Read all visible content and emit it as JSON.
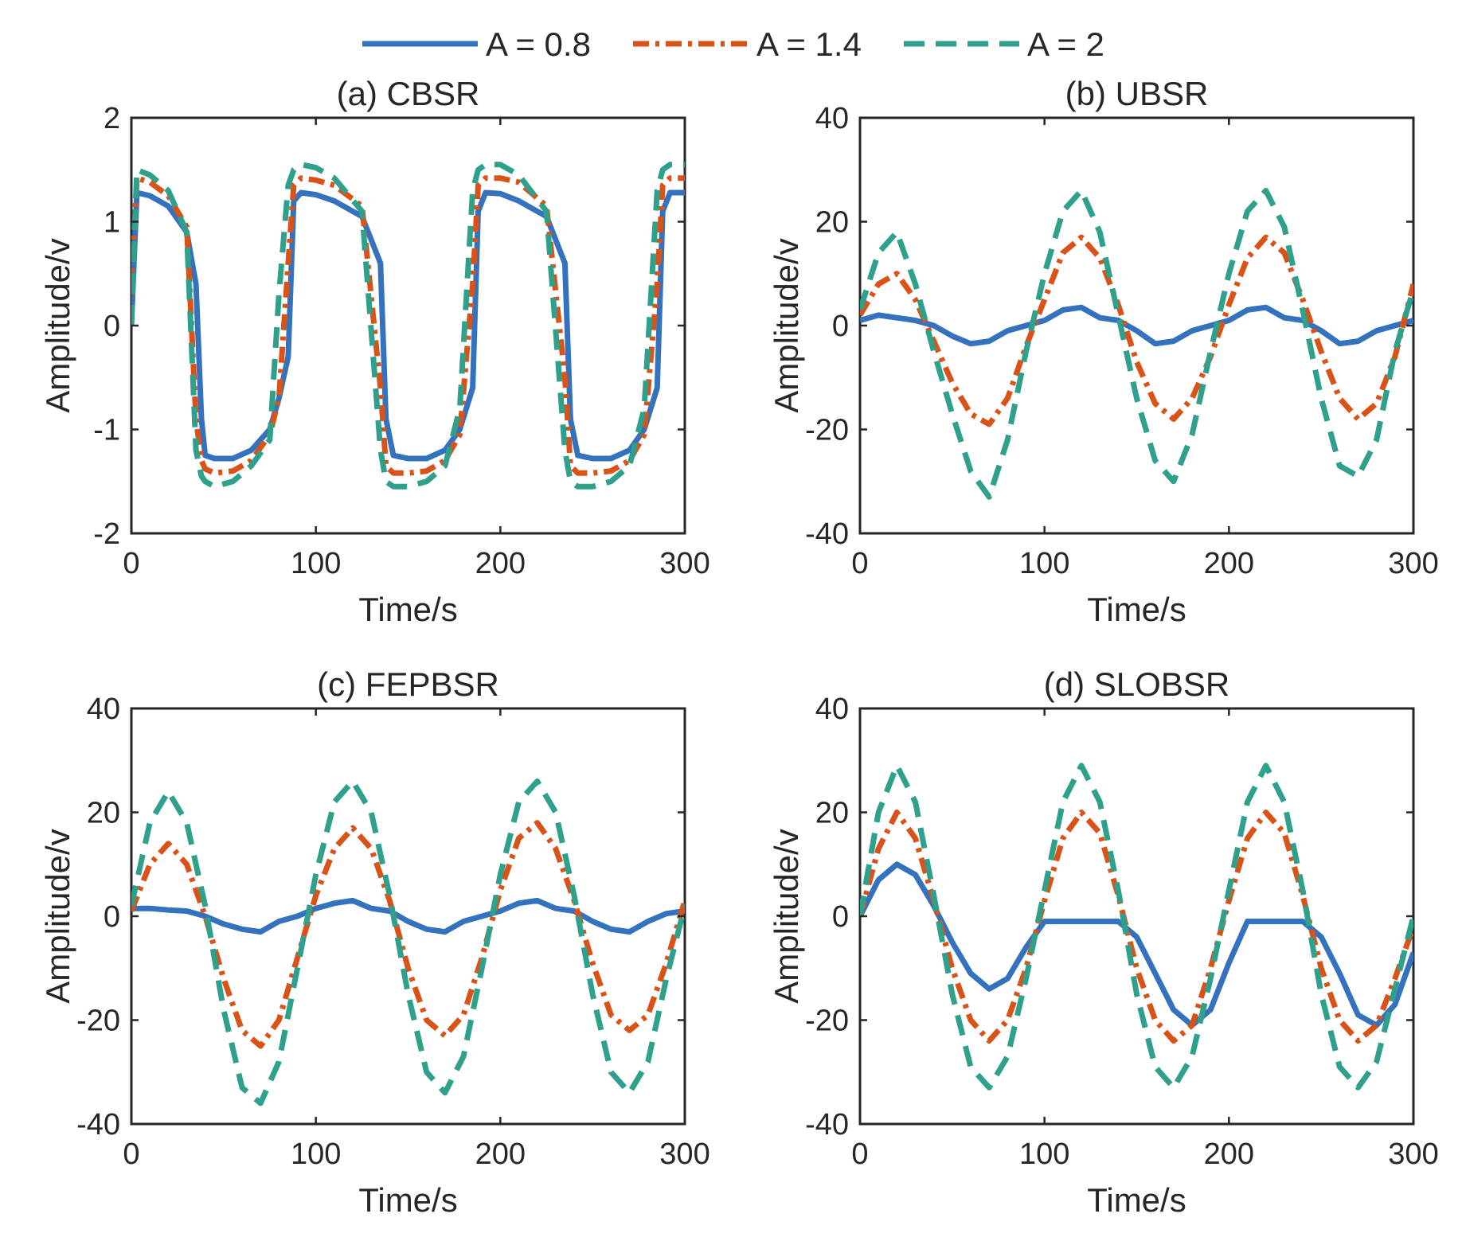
{
  "legend": {
    "entries": [
      {
        "label": "A = 0.8",
        "color": "#3472BD",
        "style": "solid"
      },
      {
        "label": "A = 1.4",
        "color": "#D95319",
        "style": "dashdot"
      },
      {
        "label": "A = 2",
        "color": "#2FA08C",
        "style": "dashed"
      }
    ]
  },
  "chart_data": [
    {
      "type": "line",
      "id": "a",
      "title": "(a) CBSR",
      "xlabel": "Time/s",
      "ylabel": "Amplitude/v",
      "xlim": [
        0,
        300
      ],
      "ylim": [
        -2,
        2
      ],
      "xticks": [
        0,
        100,
        200,
        300
      ],
      "yticks": [
        2,
        1,
        0,
        -1,
        -2
      ],
      "x": [
        0,
        3,
        10,
        20,
        30,
        35,
        38,
        40,
        45,
        55,
        65,
        75,
        80,
        85,
        88,
        92,
        100,
        110,
        125,
        135,
        138,
        142,
        150,
        160,
        170,
        178,
        185,
        188,
        192,
        200,
        210,
        225,
        235,
        238,
        242,
        250,
        260,
        270,
        278,
        285,
        288,
        292,
        300
      ],
      "series": [
        {
          "name": "A = 0.8",
          "values": [
            0,
            1.28,
            1.25,
            1.15,
            0.9,
            0.4,
            -0.9,
            -1.25,
            -1.28,
            -1.28,
            -1.2,
            -1.0,
            -0.7,
            -0.3,
            1.2,
            1.28,
            1.26,
            1.2,
            1.05,
            0.6,
            -0.9,
            -1.25,
            -1.28,
            -1.28,
            -1.2,
            -1.0,
            -0.6,
            1.1,
            1.28,
            1.27,
            1.2,
            1.05,
            0.6,
            -0.9,
            -1.25,
            -1.28,
            -1.28,
            -1.2,
            -1.0,
            -0.6,
            1.1,
            1.28,
            1.28
          ]
        },
        {
          "name": "A = 1.4",
          "values": [
            0.3,
            1.42,
            1.38,
            1.25,
            0.95,
            -0.9,
            -1.3,
            -1.38,
            -1.42,
            -1.4,
            -1.3,
            -1.05,
            -0.7,
            0.6,
            1.35,
            1.42,
            1.4,
            1.35,
            1.15,
            -0.6,
            -1.35,
            -1.42,
            -1.42,
            -1.4,
            -1.3,
            -1.05,
            0.4,
            1.35,
            1.42,
            1.42,
            1.38,
            1.15,
            -0.5,
            -1.35,
            -1.42,
            -1.42,
            -1.4,
            -1.3,
            -1.05,
            0.4,
            1.35,
            1.42,
            1.42
          ]
        },
        {
          "name": "A = 2",
          "values": [
            0,
            1.5,
            1.45,
            1.3,
            0.9,
            -1.2,
            -1.45,
            -1.5,
            -1.55,
            -1.5,
            -1.35,
            -1.1,
            0.3,
            1.35,
            1.5,
            1.55,
            1.52,
            1.42,
            1.1,
            -1.2,
            -1.5,
            -1.55,
            -1.55,
            -1.5,
            -1.35,
            -0.8,
            1.3,
            1.5,
            1.55,
            1.55,
            1.45,
            1.1,
            -1.2,
            -1.5,
            -1.55,
            -1.55,
            -1.5,
            -1.35,
            -0.8,
            1.3,
            1.5,
            1.55,
            1.55
          ]
        }
      ]
    },
    {
      "type": "line",
      "id": "b",
      "title": "(b) UBSR",
      "xlabel": "Time/s",
      "ylabel": "Amplitude/v",
      "xlim": [
        0,
        300
      ],
      "ylim": [
        -40,
        40
      ],
      "xticks": [
        0,
        100,
        200,
        300
      ],
      "yticks": [
        40,
        20,
        0,
        -20,
        -40
      ],
      "x": [
        0,
        10,
        20,
        30,
        40,
        50,
        60,
        70,
        80,
        90,
        100,
        110,
        120,
        130,
        140,
        150,
        160,
        170,
        180,
        190,
        200,
        210,
        220,
        230,
        240,
        250,
        260,
        270,
        280,
        290,
        300
      ],
      "series": [
        {
          "name": "A = 0.8",
          "values": [
            1,
            2,
            1.5,
            1,
            0,
            -2,
            -3.5,
            -3,
            -1,
            0,
            1,
            3,
            3.5,
            1.5,
            1,
            -1,
            -3.5,
            -3,
            -1,
            0,
            1,
            3,
            3.5,
            1.5,
            1,
            -1,
            -3.5,
            -3,
            -1,
            0,
            1
          ]
        },
        {
          "name": "A = 1.4",
          "values": [
            2,
            8,
            10,
            5,
            -3,
            -11,
            -17,
            -19,
            -14,
            -4,
            5,
            14,
            17,
            13,
            4,
            -7,
            -15,
            -18,
            -14,
            -6,
            4,
            13,
            17,
            14,
            5,
            -5,
            -14,
            -18,
            -15,
            -6,
            8
          ]
        },
        {
          "name": "A = 2",
          "values": [
            3,
            14,
            18,
            8,
            -5,
            -17,
            -28,
            -33,
            -22,
            -5,
            10,
            22,
            26,
            18,
            2,
            -14,
            -26,
            -30,
            -21,
            -5,
            10,
            22,
            26,
            19,
            3,
            -14,
            -27,
            -29,
            -22,
            -5,
            7
          ]
        }
      ]
    },
    {
      "type": "line",
      "id": "c",
      "title": "(c) FEPBSR",
      "xlabel": "Time/s",
      "ylabel": "Amplitude/v",
      "xlim": [
        0,
        300
      ],
      "ylim": [
        -40,
        40
      ],
      "xticks": [
        0,
        100,
        200,
        300
      ],
      "yticks": [
        40,
        20,
        0,
        -20,
        -40
      ],
      "x": [
        0,
        10,
        20,
        30,
        40,
        50,
        60,
        70,
        80,
        90,
        100,
        110,
        120,
        130,
        140,
        150,
        160,
        170,
        180,
        190,
        200,
        210,
        220,
        230,
        240,
        250,
        260,
        270,
        280,
        290,
        300
      ],
      "series": [
        {
          "name": "A = 0.8",
          "values": [
            1.5,
            1.5,
            1.2,
            1,
            0,
            -1.5,
            -2.5,
            -3,
            -1,
            0,
            1.5,
            2.5,
            3,
            1.5,
            1,
            -1,
            -2.5,
            -3,
            -1,
            0,
            1,
            2.5,
            3,
            1.5,
            1,
            -1,
            -2.5,
            -3,
            -1,
            0.5,
            1
          ]
        },
        {
          "name": "A = 1.4",
          "values": [
            1,
            10,
            14,
            10,
            0,
            -12,
            -22,
            -25,
            -20,
            -8,
            4,
            13,
            17,
            13,
            3,
            -10,
            -20,
            -23,
            -19,
            -8,
            5,
            15,
            18,
            13,
            3,
            -9,
            -19,
            -22,
            -19,
            -9,
            3
          ]
        },
        {
          "name": "A = 2",
          "values": [
            2,
            18,
            24,
            18,
            2,
            -18,
            -33,
            -36,
            -28,
            -10,
            8,
            22,
            26,
            20,
            4,
            -15,
            -30,
            -34,
            -27,
            -10,
            8,
            22,
            26,
            20,
            4,
            -15,
            -30,
            -34,
            -28,
            -12,
            2
          ]
        }
      ]
    },
    {
      "type": "line",
      "id": "d",
      "title": "(d) SLOBSR",
      "xlabel": "Time/s",
      "ylabel": "Amplitude/v",
      "xlim": [
        0,
        300
      ],
      "ylim": [
        -40,
        40
      ],
      "xticks": [
        0,
        100,
        200,
        300
      ],
      "yticks": [
        40,
        20,
        0,
        -20,
        -40
      ],
      "x": [
        0,
        10,
        20,
        30,
        40,
        50,
        60,
        70,
        80,
        90,
        100,
        110,
        120,
        130,
        140,
        150,
        160,
        170,
        180,
        190,
        200,
        210,
        220,
        230,
        240,
        250,
        260,
        270,
        280,
        290,
        300
      ],
      "series": [
        {
          "name": "A = 0.8",
          "values": [
            0,
            7,
            10,
            8,
            2,
            -5,
            -11,
            -14,
            -12,
            -6,
            -1,
            -1,
            -1,
            -1,
            -1,
            -4,
            -11,
            -18,
            -21,
            -18,
            -9,
            -1,
            -1,
            -1,
            -1,
            -4,
            -11,
            -19,
            -21,
            -17,
            -7
          ]
        },
        {
          "name": "A = 1.4",
          "values": [
            0,
            13,
            20,
            15,
            3,
            -10,
            -20,
            -24,
            -20,
            -10,
            3,
            15,
            20,
            16,
            4,
            -10,
            -20,
            -24,
            -21,
            -10,
            3,
            15,
            20,
            16,
            4,
            -10,
            -20,
            -24,
            -21,
            -12,
            -2
          ]
        },
        {
          "name": "A = 2",
          "values": [
            0,
            20,
            29,
            22,
            4,
            -15,
            -29,
            -33,
            -27,
            -12,
            5,
            22,
            29,
            22,
            5,
            -15,
            -29,
            -33,
            -27,
            -12,
            5,
            22,
            29,
            22,
            5,
            -15,
            -29,
            -33,
            -28,
            -14,
            0
          ]
        }
      ]
    }
  ]
}
